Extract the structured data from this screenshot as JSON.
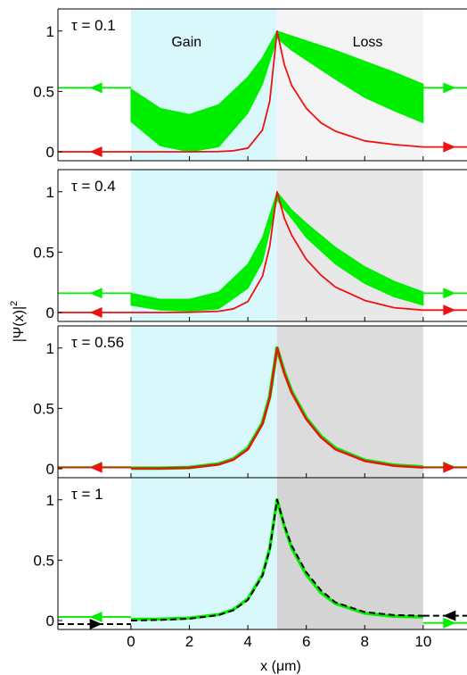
{
  "figure": {
    "ylabel": "|Ψ(x)|",
    "ylabel_sup": "2",
    "xlabel": "x (μm)",
    "gain_label": "Gain",
    "loss_label": "Loss"
  },
  "colors": {
    "gain_region": "#d8f8fc",
    "loss_region_panels": [
      "#f4f4f4",
      "#e8e8e8",
      "#dcdcdc",
      "#d4d4d4"
    ],
    "green": "#00ee00",
    "red": "#ee1111",
    "black": "#000000"
  },
  "chart_data": [
    {
      "type": "line",
      "panel": 1,
      "tau_label": "τ = 0.1",
      "xlim": [
        -2.5,
        11.5
      ],
      "ylim": [
        0,
        1.05
      ],
      "y_ticks": [
        0,
        0.5,
        1
      ],
      "y_tick_labels": [
        "0",
        "0.5",
        "1"
      ],
      "gain_region": [
        0,
        5
      ],
      "loss_region": [
        5,
        10
      ],
      "series": [
        {
          "color": "green",
          "kind": "band",
          "x": [
            0,
            1,
            2,
            3,
            4,
            4.5,
            5,
            5.5,
            6,
            7,
            8,
            9,
            10
          ],
          "upper": [
            0.52,
            0.36,
            0.31,
            0.39,
            0.62,
            0.78,
            1.0,
            0.96,
            0.92,
            0.84,
            0.75,
            0.66,
            0.56
          ],
          "lower": [
            0.25,
            0.05,
            0.0,
            0.04,
            0.32,
            0.56,
            0.94,
            0.84,
            0.76,
            0.6,
            0.45,
            0.34,
            0.24
          ],
          "outside_left": 0.53,
          "outside_right": 0.53
        },
        {
          "color": "red",
          "kind": "line",
          "x": [
            0,
            1,
            2,
            3,
            3.5,
            4,
            4.5,
            4.75,
            5,
            5.25,
            5.5,
            6,
            6.5,
            7,
            8,
            9,
            10
          ],
          "y": [
            0,
            0,
            0,
            0.002,
            0.008,
            0.03,
            0.18,
            0.42,
            1.0,
            0.72,
            0.55,
            0.36,
            0.24,
            0.17,
            0.09,
            0.06,
            0.04
          ],
          "outside_left": 0.0,
          "outside_right": 0.04
        }
      ],
      "arrows": {
        "green_left": "left",
        "green_right": "right",
        "red_left": "left",
        "red_right": "right"
      }
    },
    {
      "type": "line",
      "panel": 2,
      "tau_label": "τ = 0.4",
      "xlim": [
        -2.5,
        11.5
      ],
      "ylim": [
        0,
        1.05
      ],
      "y_ticks": [
        0,
        0.5,
        1
      ],
      "y_tick_labels": [
        "0",
        "0.5",
        "1"
      ],
      "gain_region": [
        0,
        5
      ],
      "loss_region": [
        5,
        10
      ],
      "series": [
        {
          "color": "green",
          "kind": "band",
          "x": [
            0,
            1,
            2,
            3,
            4,
            4.5,
            5,
            5.5,
            6,
            7,
            8,
            9,
            10
          ],
          "upper": [
            0.16,
            0.11,
            0.11,
            0.17,
            0.4,
            0.62,
            1.0,
            0.85,
            0.74,
            0.54,
            0.38,
            0.26,
            0.17
          ],
          "lower": [
            0.06,
            0.02,
            0.01,
            0.03,
            0.2,
            0.42,
            0.93,
            0.78,
            0.62,
            0.4,
            0.24,
            0.13,
            0.06
          ],
          "outside_left": 0.16,
          "outside_right": 0.16
        },
        {
          "color": "red",
          "kind": "line",
          "x": [
            0,
            1,
            2,
            3,
            3.5,
            4,
            4.5,
            4.75,
            5,
            5.25,
            5.5,
            6,
            6.5,
            7,
            8,
            9,
            10
          ],
          "y": [
            0,
            0,
            0.002,
            0.01,
            0.03,
            0.09,
            0.3,
            0.55,
            1.0,
            0.78,
            0.64,
            0.44,
            0.31,
            0.21,
            0.1,
            0.04,
            0.02
          ],
          "outside_left": 0.0,
          "outside_right": 0.02
        }
      ],
      "arrows": {
        "green_left": "left",
        "green_right": "right",
        "red_left": "left",
        "red_right": "right"
      }
    },
    {
      "type": "line",
      "panel": 3,
      "tau_label": "τ = 0.56",
      "xlim": [
        -2.5,
        11.5
      ],
      "ylim": [
        0,
        1.05
      ],
      "y_ticks": [
        0,
        0.5,
        1
      ],
      "y_tick_labels": [
        "0",
        "0.5",
        "1"
      ],
      "gain_region": [
        0,
        5
      ],
      "loss_region": [
        5,
        10
      ],
      "series": [
        {
          "color": "green",
          "kind": "line",
          "width": 4,
          "x": [
            0,
            1,
            2,
            3,
            3.5,
            4,
            4.5,
            4.75,
            5,
            5.25,
            5.5,
            6,
            6.5,
            7,
            8,
            9,
            10
          ],
          "y": [
            0.005,
            0.005,
            0.01,
            0.04,
            0.08,
            0.17,
            0.38,
            0.6,
            1.0,
            0.8,
            0.64,
            0.42,
            0.27,
            0.17,
            0.07,
            0.03,
            0.015
          ],
          "outside_left": 0.015,
          "outside_right": 0.015
        },
        {
          "color": "red",
          "kind": "line",
          "width": 2.5,
          "x": [
            0,
            1,
            2,
            3,
            3.5,
            4,
            4.5,
            4.75,
            5,
            5.25,
            5.5,
            6,
            6.5,
            7,
            8,
            9,
            10
          ],
          "y": [
            0.003,
            0.003,
            0.008,
            0.035,
            0.075,
            0.16,
            0.37,
            0.59,
            1.0,
            0.79,
            0.63,
            0.41,
            0.26,
            0.16,
            0.065,
            0.025,
            0.01
          ],
          "outside_left": 0.01,
          "outside_right": 0.01
        }
      ],
      "arrows": {
        "green_left": "left",
        "green_right": "right",
        "red_left": "left",
        "red_right": "right"
      }
    },
    {
      "type": "line",
      "panel": 4,
      "tau_label": "τ = 1",
      "xlim": [
        -2.5,
        11.5
      ],
      "ylim": [
        0,
        1.05
      ],
      "y_ticks": [
        0,
        0.5,
        1
      ],
      "y_tick_labels": [
        "0",
        "0.5",
        "1"
      ],
      "x_ticks": [
        0,
        2,
        4,
        6,
        8,
        10
      ],
      "x_tick_labels": [
        "0",
        "2",
        "4",
        "6",
        "8",
        "10"
      ],
      "gain_region": [
        0,
        5
      ],
      "loss_region": [
        5,
        10
      ],
      "series": [
        {
          "color": "green",
          "kind": "line",
          "width": 3.5,
          "x": [
            0,
            1,
            2,
            3,
            3.5,
            4,
            4.5,
            4.75,
            5,
            5.25,
            5.5,
            6,
            6.5,
            7,
            8,
            9,
            10
          ],
          "y": [
            0.01,
            0.012,
            0.02,
            0.05,
            0.09,
            0.18,
            0.38,
            0.6,
            1.0,
            0.78,
            0.6,
            0.38,
            0.23,
            0.14,
            0.06,
            0.035,
            0.03
          ],
          "outside_left": 0.03,
          "outside_right": -0.02
        },
        {
          "color": "black",
          "kind": "dashed",
          "width": 2,
          "x": [
            0,
            1,
            2,
            3,
            3.5,
            4,
            4.5,
            4.75,
            5,
            5.25,
            5.5,
            6,
            6.5,
            7,
            8,
            9,
            10
          ],
          "y": [
            0.0,
            0.005,
            0.015,
            0.045,
            0.085,
            0.17,
            0.37,
            0.59,
            1.0,
            0.79,
            0.62,
            0.4,
            0.25,
            0.15,
            0.07,
            0.045,
            0.04
          ],
          "outside_left": -0.03,
          "outside_right": 0.04
        }
      ],
      "arrows": {
        "green_left": "left",
        "green_right": "right",
        "black_left": "right",
        "black_right": "left"
      }
    }
  ]
}
